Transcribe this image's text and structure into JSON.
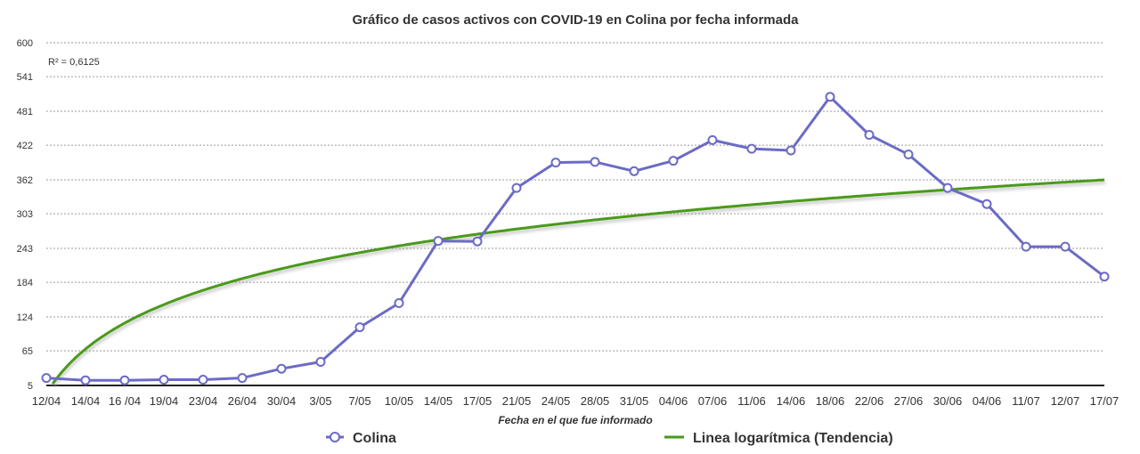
{
  "chart_data": {
    "type": "line",
    "title": "Gráfico de casos activos con COVID-19 en Colina por fecha informada",
    "xlabel": "Fecha en el que fue informado",
    "ylabel": "",
    "ylim": [
      5,
      600
    ],
    "yticks": [
      "5",
      "65",
      "124",
      "184",
      "243",
      "303",
      "362",
      "422",
      "481",
      "541",
      "600"
    ],
    "categories": [
      "12/04",
      "14/04",
      "16 /04",
      "19/04",
      "23/04",
      "26/04",
      "30/04",
      "3/05",
      "7/05",
      "10/05",
      "14/05",
      "17/05",
      "21/05",
      "24/05",
      "28/05",
      "31/05",
      "04/06",
      "07/06",
      "11/06",
      "14/06",
      "18/06",
      "22/06",
      "27/06",
      "30/06",
      "04/06",
      "11/07",
      "12/07",
      "17/07"
    ],
    "grid": true,
    "legend_position": "bottom",
    "annotation": "R² = 0,6125",
    "series": [
      {
        "name": "Colina",
        "color": "#6b6bc6",
        "marker": "circle",
        "values": [
          18,
          14,
          14,
          15,
          15,
          18,
          34,
          46,
          106,
          148,
          256,
          255,
          348,
          392,
          393,
          377,
          395,
          431,
          416,
          413,
          506,
          440,
          406,
          348,
          320,
          246,
          246,
          194
        ]
      },
      {
        "name": "Linea logarítmica (Tendencia)",
        "color": "#4a9a1a",
        "trend": "logarithmic",
        "coefficients": {
          "a": 111.3,
          "b": -8.9
        }
      }
    ]
  }
}
